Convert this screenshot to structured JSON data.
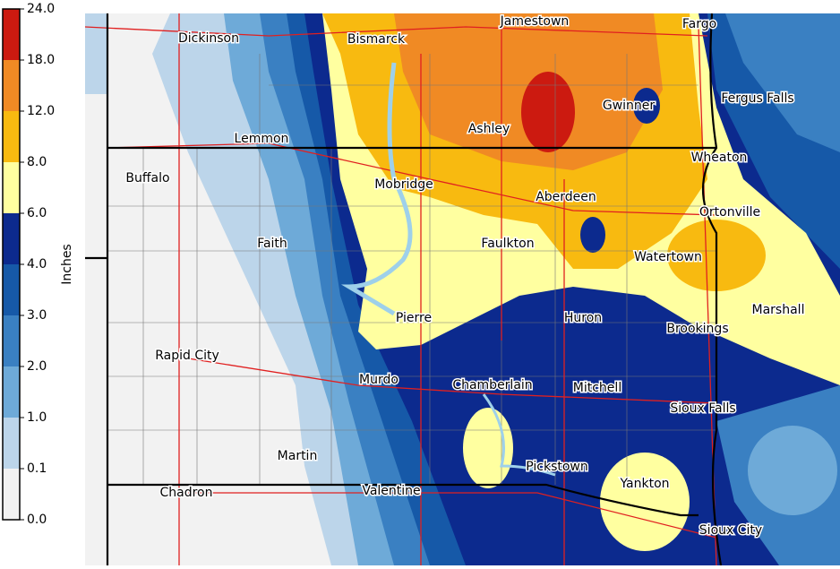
{
  "legend": {
    "title": "Inches",
    "ticks": [
      {
        "value": 24,
        "label": "24.0"
      },
      {
        "value": 18,
        "label": "18.0"
      },
      {
        "value": 12,
        "label": "12.0"
      },
      {
        "value": 8,
        "label": "8.0"
      },
      {
        "value": 6,
        "label": "6.0"
      },
      {
        "value": 4,
        "label": "4.0"
      },
      {
        "value": 3,
        "label": "3.0"
      },
      {
        "value": 2,
        "label": "2.0"
      },
      {
        "value": 1,
        "label": "1.0"
      },
      {
        "value": 0.1,
        "label": "0.1"
      },
      {
        "value": 0,
        "label": "0.0"
      }
    ],
    "colors": [
      "#cc1a10",
      "#f08a24",
      "#f8ba10",
      "#ffffa0",
      "#0c2a8e",
      "#1659a8",
      "#3a80c2",
      "#6eaad8",
      "#bcd5ea",
      "#f2f2f2"
    ]
  },
  "cities": [
    "Jamestown",
    "Fargo",
    "Dickinson",
    "Bismarck",
    "Fergus Falls",
    "Gwinner",
    "Ashley",
    "Lemmon",
    "Wheaton",
    "Buffalo",
    "Mobridge",
    "Aberdeen",
    "Ortonville",
    "Faith",
    "Faulkton",
    "Watertown",
    "Marshall",
    "Pierre",
    "Huron",
    "Brookings",
    "Rapid City",
    "Murdo",
    "Chamberlain",
    "Mitchell",
    "Sioux Falls",
    "Martin",
    "Pickstown",
    "Yankton",
    "Chadron",
    "Valentine",
    "Sioux City"
  ]
}
